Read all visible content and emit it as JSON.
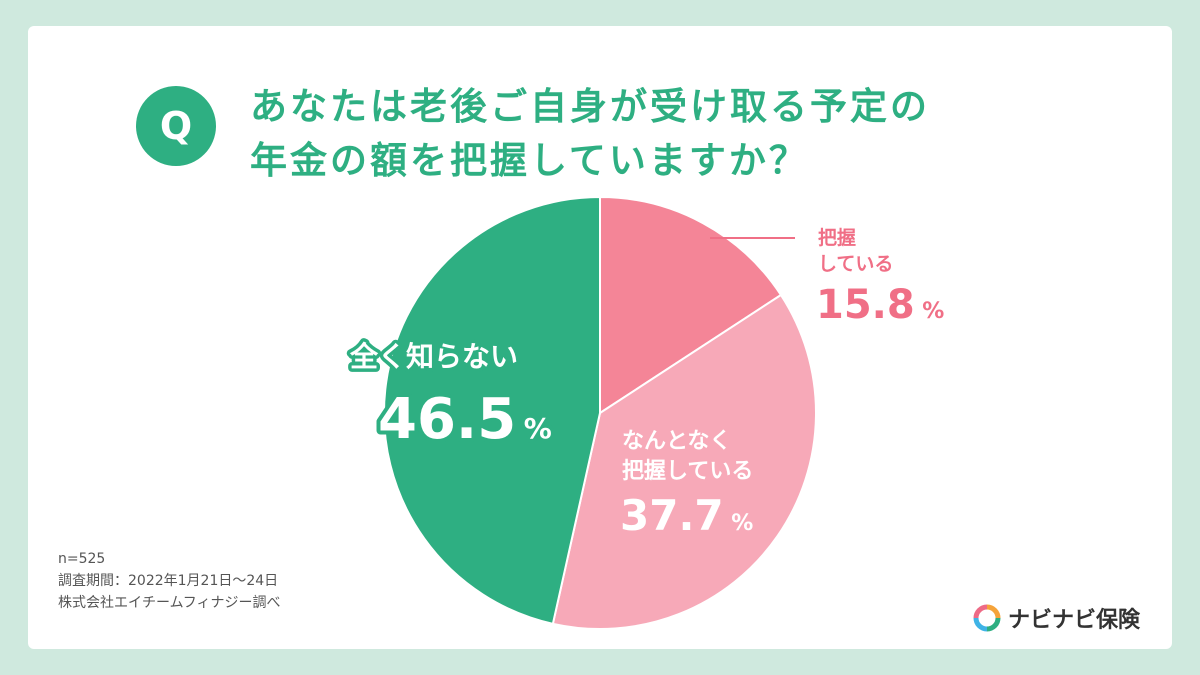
{
  "question": {
    "badge": "Q",
    "title_line1": "あなたは老後ご自身が受け取る予定の",
    "title_line2": "年金の額を把握していますか？"
  },
  "chart_data": {
    "type": "pie",
    "slices": [
      {
        "label_lines": [
          "把握",
          "している"
        ],
        "value": 15.8,
        "value_text": "15.8",
        "unit": "%",
        "color": "#f48597",
        "label_color": "#f06f86"
      },
      {
        "label_lines": [
          "なんとなく",
          "把握している"
        ],
        "value": 37.7,
        "value_text": "37.7",
        "unit": "%",
        "color": "#f7a9b8",
        "label_color": "#ffffff"
      },
      {
        "label_lines": [
          "全く知らない"
        ],
        "value": 46.5,
        "value_text": "46.5",
        "unit": "%",
        "color": "#2eaf82",
        "label_color": "#ffffff"
      }
    ]
  },
  "footer": {
    "n": "n=525",
    "period": "調査期間：2022年1月21日〜24日",
    "source": "株式会社エイチームフィナジー調べ",
    "brand": "ナビナビ保険"
  }
}
